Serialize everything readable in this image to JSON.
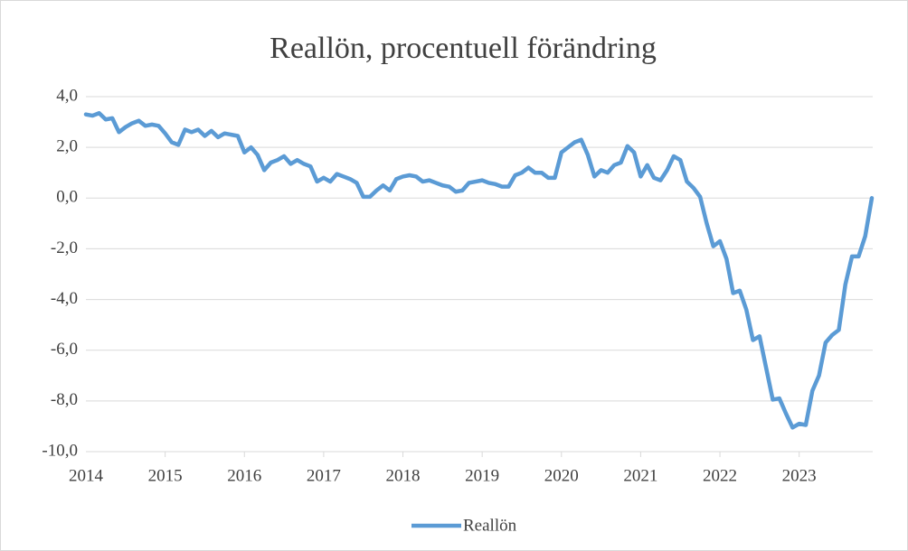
{
  "chart_data": {
    "type": "line",
    "title": "Reallön, procentuell förändring",
    "categories": [
      "2014",
      null,
      null,
      null,
      null,
      null,
      null,
      null,
      null,
      null,
      null,
      null,
      "2015",
      null,
      null,
      null,
      null,
      null,
      null,
      null,
      null,
      null,
      null,
      null,
      "2016",
      null,
      null,
      null,
      null,
      null,
      null,
      null,
      null,
      null,
      null,
      null,
      "2017",
      null,
      null,
      null,
      null,
      null,
      null,
      null,
      null,
      null,
      null,
      null,
      "2018",
      null,
      null,
      null,
      null,
      null,
      null,
      null,
      null,
      null,
      null,
      null,
      "2019",
      null,
      null,
      null,
      null,
      null,
      null,
      null,
      null,
      null,
      null,
      null,
      "2020",
      null,
      null,
      null,
      null,
      null,
      null,
      null,
      null,
      null,
      null,
      null,
      "2021",
      null,
      null,
      null,
      null,
      null,
      null,
      null,
      null,
      null,
      null,
      null,
      "2022",
      null,
      null,
      null,
      null,
      null,
      null,
      null,
      null,
      null,
      null,
      null,
      "2023",
      null,
      null,
      null,
      null,
      null,
      null,
      null,
      null,
      null,
      null,
      null
    ],
    "series": [
      {
        "name": "Reallön",
        "color": "#5b9bd5",
        "values": [
          3.3,
          3.25,
          3.35,
          3.1,
          3.15,
          2.6,
          2.8,
          2.95,
          3.05,
          2.85,
          2.9,
          2.85,
          2.55,
          2.2,
          2.1,
          2.7,
          2.6,
          2.7,
          2.45,
          2.65,
          2.4,
          2.55,
          2.5,
          2.45,
          1.8,
          2.0,
          1.7,
          1.1,
          1.4,
          1.5,
          1.65,
          1.35,
          1.5,
          1.35,
          1.25,
          0.65,
          0.8,
          0.65,
          0.95,
          0.85,
          0.75,
          0.6,
          0.05,
          0.05,
          0.3,
          0.5,
          0.3,
          0.75,
          0.85,
          0.9,
          0.85,
          0.65,
          0.7,
          0.6,
          0.5,
          0.45,
          0.25,
          0.3,
          0.6,
          0.65,
          0.7,
          0.6,
          0.55,
          0.45,
          0.45,
          0.9,
          1.0,
          1.2,
          1.0,
          1.0,
          0.8,
          0.8,
          1.8,
          2.0,
          2.2,
          2.3,
          1.7,
          0.85,
          1.1,
          1.0,
          1.3,
          1.4,
          2.05,
          1.8,
          0.85,
          1.3,
          0.8,
          0.7,
          1.1,
          1.65,
          1.5,
          0.65,
          0.4,
          0.05,
          -1.0,
          -1.9,
          -1.7,
          -2.4,
          -3.75,
          -3.65,
          -4.4,
          -5.6,
          -5.45,
          -6.7,
          -7.95,
          -7.9,
          -8.5,
          -9.05,
          -8.9,
          -8.95,
          -7.6,
          -7.0,
          -5.7,
          -5.4,
          -5.2,
          -3.4,
          -2.3,
          -2.3,
          -1.5,
          0.0
        ]
      }
    ],
    "ylim": [
      -10,
      4
    ],
    "yticks": [
      {
        "value": -10,
        "label": "-10,0"
      },
      {
        "value": -8,
        "label": "-8,0"
      },
      {
        "value": -6,
        "label": "-6,0"
      },
      {
        "value": -4,
        "label": "-4,0"
      },
      {
        "value": -2,
        "label": "-2,0"
      },
      {
        "value": 0,
        "label": "0,0"
      },
      {
        "value": 2,
        "label": "2,0"
      },
      {
        "value": 4,
        "label": "4,0"
      }
    ],
    "grid": true,
    "legend": "bottom"
  }
}
